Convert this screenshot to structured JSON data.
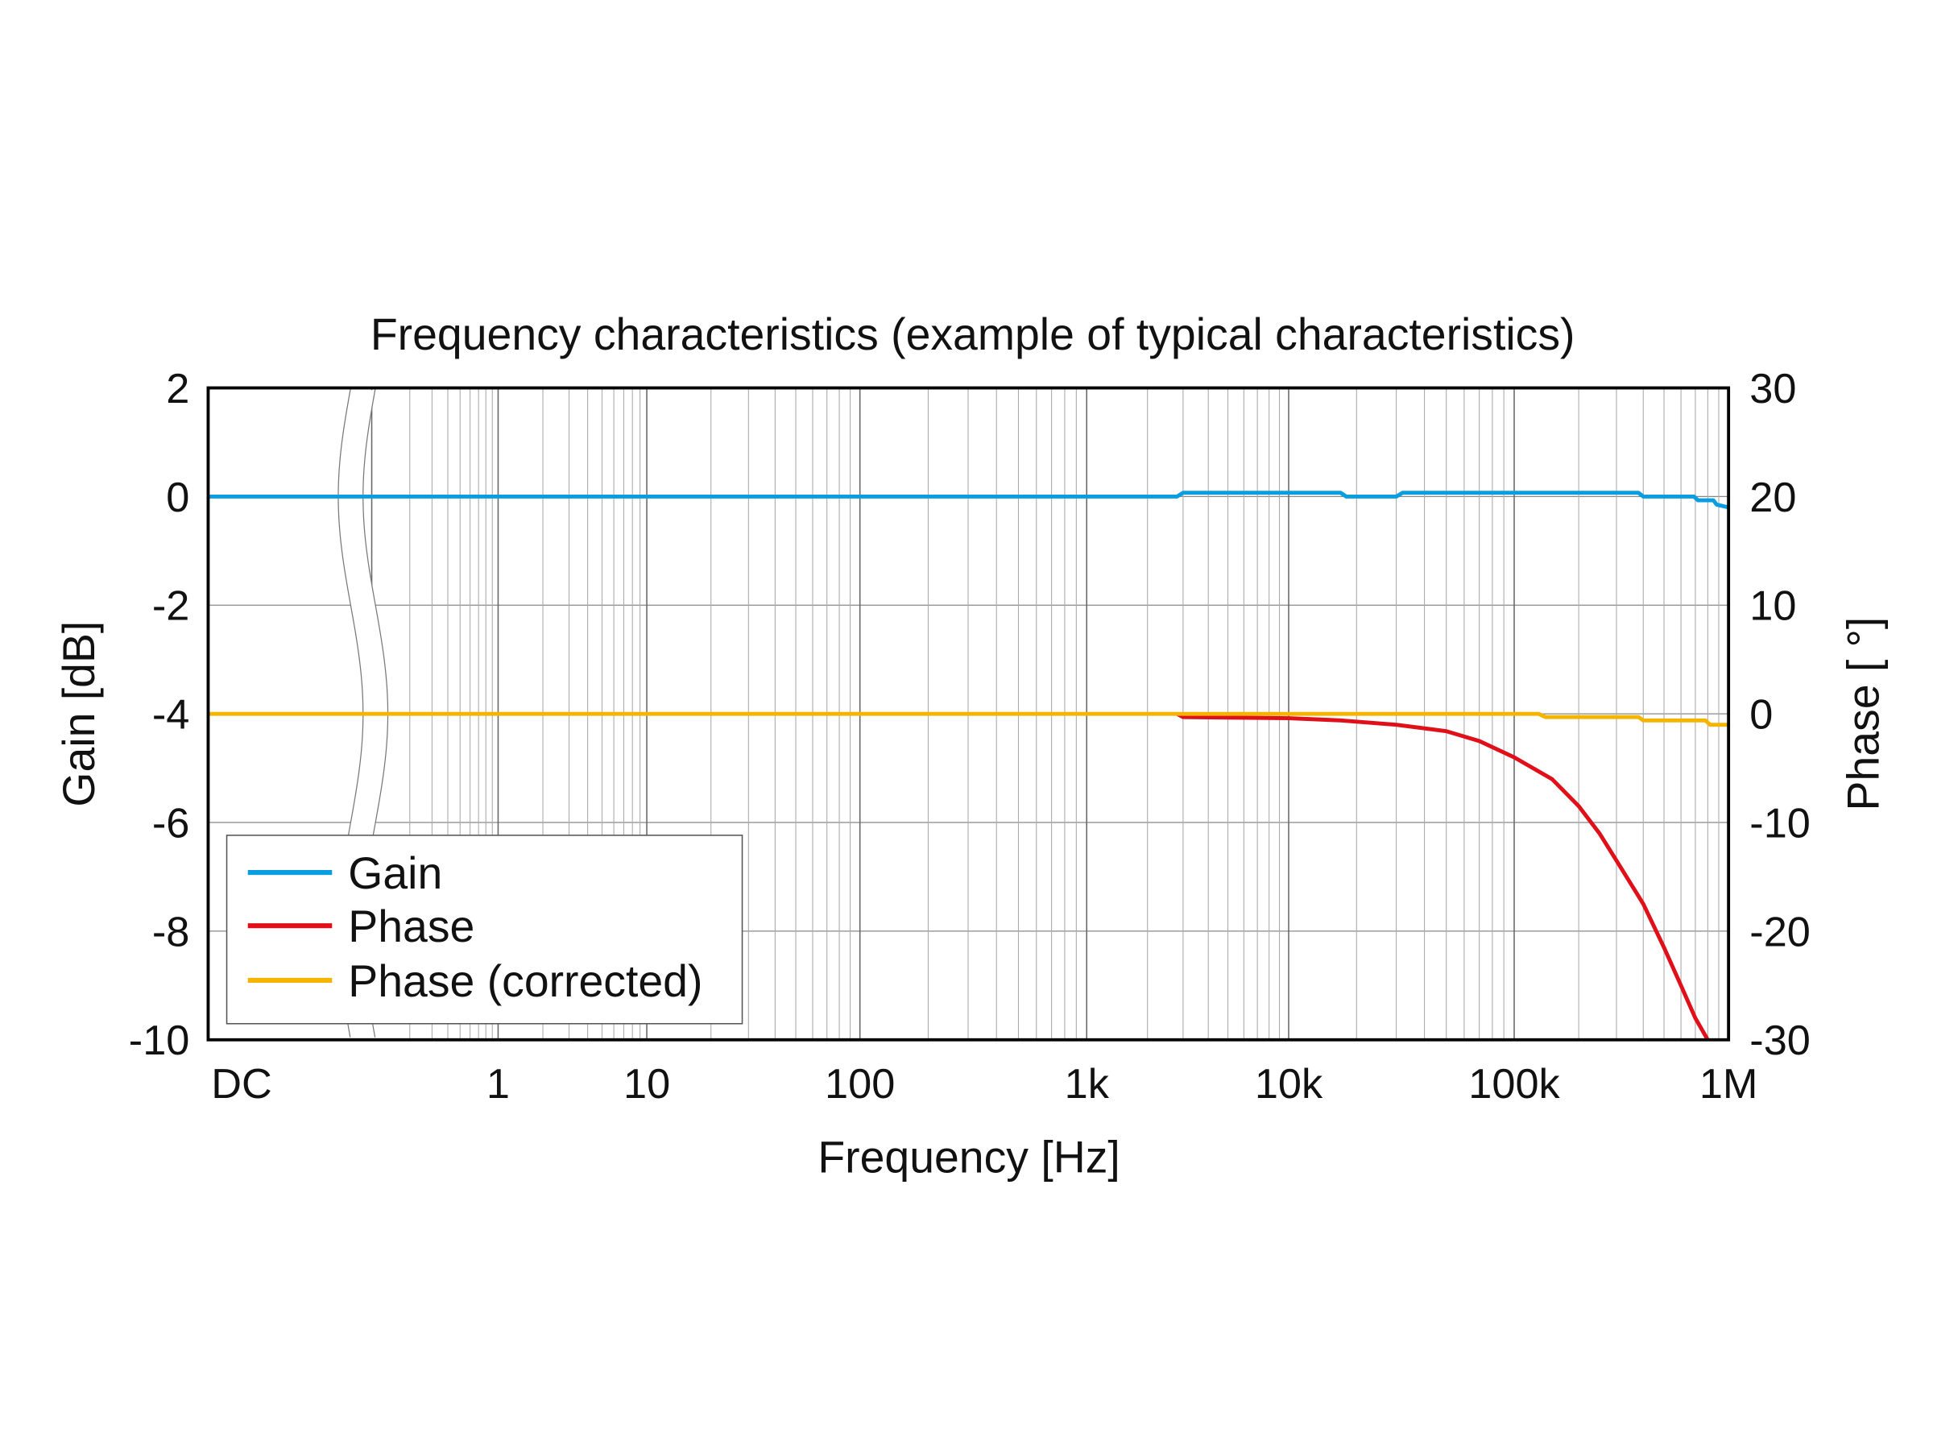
{
  "chart_data": {
    "type": "line",
    "title": "Frequency characteristics (example of typical characteristics)",
    "xlabel": "Frequency [Hz]",
    "ylabel": "Gain [dB]",
    "y2label": "Phase [ °]",
    "xscale": "log with axis break after DC",
    "xticks": [
      "DC",
      "1",
      "10",
      "100",
      "1k",
      "10k",
      "100k",
      "1M"
    ],
    "yticks": [
      "2",
      "0",
      "-2",
      "-4",
      "-6",
      "-8",
      "-10"
    ],
    "y2ticks": [
      "30",
      "20",
      "10",
      "0",
      "-10",
      "-20",
      "-30"
    ],
    "ylim": [
      -10,
      2
    ],
    "y2lim": [
      -30,
      30
    ],
    "grid": true,
    "legend_position": "bottom-left",
    "series": [
      {
        "name": "Gain",
        "axis": "left",
        "color": "#0a9ee0",
        "points": [
          [
            "DC",
            0
          ],
          [
            0.1,
            0
          ],
          [
            2800,
            0
          ],
          [
            3000,
            0.07
          ],
          [
            17000,
            0.07
          ],
          [
            18000,
            0
          ],
          [
            30000,
            0
          ],
          [
            32000,
            0.07
          ],
          [
            380000,
            0.07
          ],
          [
            400000,
            0
          ],
          [
            690000,
            0
          ],
          [
            720000,
            -0.07
          ],
          [
            850000,
            -0.07
          ],
          [
            880000,
            -0.15
          ],
          [
            1000000,
            -0.2
          ]
        ]
      },
      {
        "name": "Phase",
        "axis": "right",
        "color": "#e0101a",
        "points": [
          [
            2800,
            0
          ],
          [
            3000,
            -0.3
          ],
          [
            10000,
            -0.4
          ],
          [
            17000,
            -0.6
          ],
          [
            30000,
            -1.0
          ],
          [
            50000,
            -1.6
          ],
          [
            70000,
            -2.5
          ],
          [
            100000,
            -4.0
          ],
          [
            150000,
            -6.0
          ],
          [
            200000,
            -8.5
          ],
          [
            250000,
            -11
          ],
          [
            300000,
            -13.5
          ],
          [
            400000,
            -17.5
          ],
          [
            500000,
            -21.5
          ],
          [
            600000,
            -25
          ],
          [
            700000,
            -28
          ],
          [
            800000,
            -30.5
          ]
        ]
      },
      {
        "name": "Phase (corrected)",
        "axis": "right",
        "color": "#f5b400",
        "points": [
          [
            "DC",
            0
          ],
          [
            0.1,
            0
          ],
          [
            130000,
            0
          ],
          [
            140000,
            -0.3
          ],
          [
            380000,
            -0.3
          ],
          [
            400000,
            -0.6
          ],
          [
            780000,
            -0.6
          ],
          [
            820000,
            -1.0
          ],
          [
            1000000,
            -1.0
          ]
        ]
      }
    ]
  }
}
